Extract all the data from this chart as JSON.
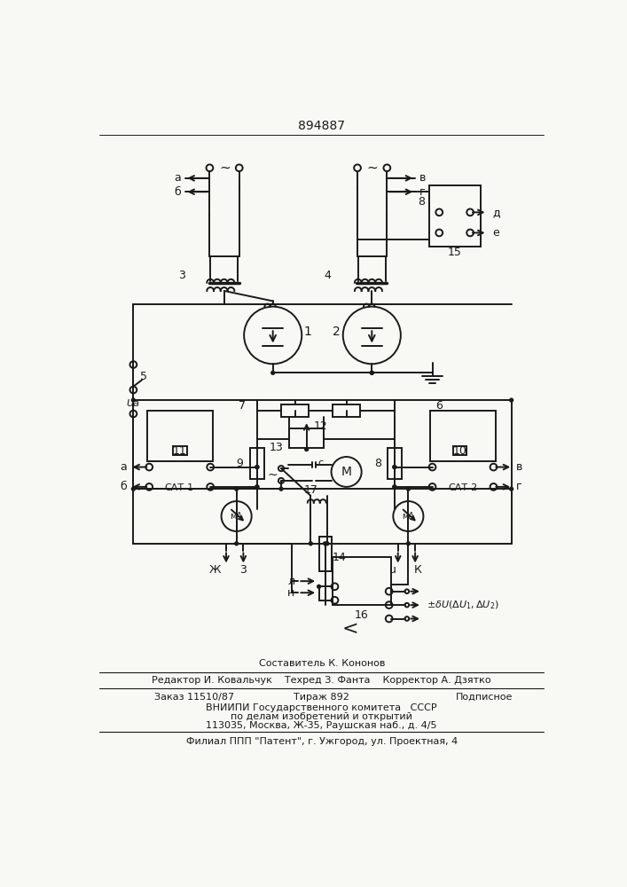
{
  "title": "894887",
  "bg_color": "#f8f8f4",
  "line_color": "#1a1a1a",
  "text_color": "#1a1a1a",
  "footer": {
    "line1": "Составитель К. Кононов",
    "line2a": "Редактор И. Ковальчук",
    "line2b": "Техред З. Фанта",
    "line2c": "Корректор А. Дзятко",
    "line3a": "Заказ 11510/87",
    "line3b": "Тираж 892",
    "line3c": "Подписное",
    "line4": "ВНИИПИ Государственного комитета   СССР",
    "line5": "по делам изобретений и открытий",
    "line6": "113035, Москва, Ж-35, Раушская наб., д. 4/5",
    "line7": "Филиал ППП \"Патент\", г. Ужгород, ул. Проектная, 4"
  }
}
